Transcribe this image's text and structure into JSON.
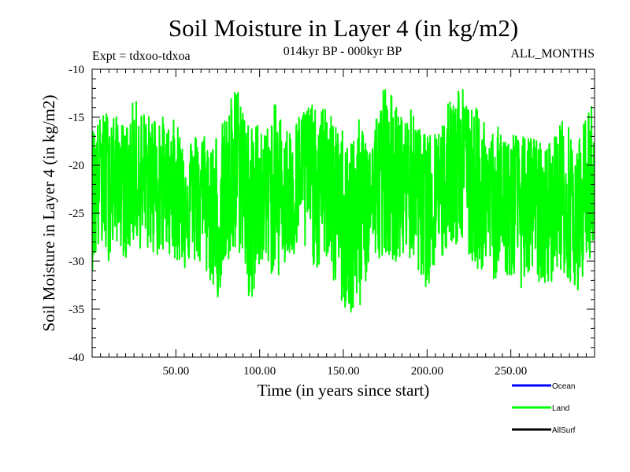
{
  "chart_data": {
    "type": "line",
    "title": "Soil Moisture in Layer 4 (in kg/m2)",
    "subtitle_left": "Expt = tdxoo-tdxoa",
    "subtitle_center": "014kyr BP - 000kyr BP",
    "subtitle_right": "ALL_MONTHS",
    "xlabel": "Time (in years since start)",
    "ylabel": "Soil Moisture in Layer 4 (in kg/m2)",
    "xlim": [
      0,
      300
    ],
    "ylim": [
      -40,
      -10
    ],
    "xticks": [
      50,
      100,
      150,
      200,
      250
    ],
    "xtick_labels": [
      "50.00",
      "100.00",
      "150.00",
      "200.00",
      "250.00"
    ],
    "yticks": [
      -40,
      -35,
      -30,
      -25,
      -20,
      -15,
      -10
    ],
    "ytick_labels": [
      "-40",
      "-35",
      "-30",
      "-25",
      "-20",
      "-15",
      "-10"
    ],
    "grid": false,
    "legend_position": "bottom-right",
    "series": [
      {
        "name": "Ocean",
        "color": "#0000ff",
        "x": [],
        "values": []
      },
      {
        "name": "Land",
        "color": "#00ff00",
        "x": [
          0,
          5,
          10,
          15,
          20,
          25,
          30,
          35,
          40,
          45,
          50,
          55,
          60,
          65,
          70,
          75,
          80,
          85,
          90,
          95,
          100,
          105,
          110,
          115,
          120,
          125,
          130,
          135,
          140,
          145,
          150,
          155,
          160,
          165,
          170,
          175,
          180,
          185,
          190,
          195,
          200,
          205,
          210,
          215,
          220,
          225,
          230,
          235,
          240,
          245,
          250,
          255,
          260,
          265,
          270,
          275,
          280,
          285,
          290,
          295,
          300
        ],
        "values": [
          -22,
          -19,
          -21,
          -20,
          -22,
          -21,
          -22,
          -20,
          -22,
          -21,
          -22,
          -22,
          -23,
          -22,
          -25,
          -26,
          -25,
          -21,
          -20,
          -25,
          -23,
          -22,
          -23,
          -22,
          -22,
          -20,
          -21,
          -22,
          -21,
          -23,
          -24,
          -25,
          -26,
          -23,
          -23,
          -20,
          -21,
          -22,
          -21,
          -22,
          -23,
          -22,
          -21,
          -20,
          -20,
          -21,
          -23,
          -23,
          -24,
          -25,
          -24,
          -24,
          -23,
          -24,
          -25,
          -24,
          -24,
          -24,
          -25,
          -23,
          -24
        ],
        "envelope": {
          "x": [
            0,
            5,
            10,
            15,
            20,
            25,
            30,
            35,
            40,
            45,
            50,
            55,
            60,
            65,
            70,
            75,
            80,
            85,
            90,
            95,
            100,
            105,
            110,
            115,
            120,
            125,
            130,
            135,
            140,
            145,
            150,
            155,
            160,
            165,
            170,
            175,
            180,
            185,
            190,
            195,
            200,
            205,
            210,
            215,
            220,
            225,
            230,
            235,
            240,
            245,
            250,
            255,
            260,
            265,
            270,
            275,
            280,
            285,
            290,
            295,
            300
          ],
          "upper": [
            -16,
            -15,
            -14,
            -15,
            -16,
            -13,
            -14,
            -15,
            -14,
            -16,
            -15,
            -17,
            -17,
            -16,
            -17,
            -16,
            -15,
            -11,
            -13,
            -16,
            -15,
            -16,
            -13,
            -16,
            -16,
            -14,
            -13,
            -15,
            -13,
            -16,
            -16,
            -17,
            -15,
            -17,
            -14,
            -11,
            -13,
            -15,
            -14,
            -16,
            -17,
            -16,
            -15,
            -12,
            -11,
            -14,
            -14,
            -15,
            -16,
            -16,
            -16,
            -17,
            -17,
            -17,
            -18,
            -17,
            -15,
            -16,
            -18,
            -14,
            -13
          ],
          "lower": [
            -31,
            -29,
            -30,
            -28,
            -30,
            -28,
            -29,
            -29,
            -30,
            -29,
            -30,
            -31,
            -30,
            -31,
            -32,
            -34,
            -31,
            -30,
            -29,
            -37,
            -30,
            -31,
            -32,
            -31,
            -30,
            -29,
            -30,
            -31,
            -30,
            -33,
            -35,
            -37,
            -35,
            -31,
            -30,
            -29,
            -30,
            -30,
            -30,
            -31,
            -33,
            -31,
            -30,
            -28,
            -29,
            -30,
            -31,
            -31,
            -32,
            -31,
            -32,
            -33,
            -32,
            -32,
            -33,
            -32,
            -31,
            -32,
            -33,
            -31,
            -28
          ]
        }
      },
      {
        "name": "AllSurf",
        "color": "#000000",
        "x": [],
        "values": []
      }
    ]
  }
}
